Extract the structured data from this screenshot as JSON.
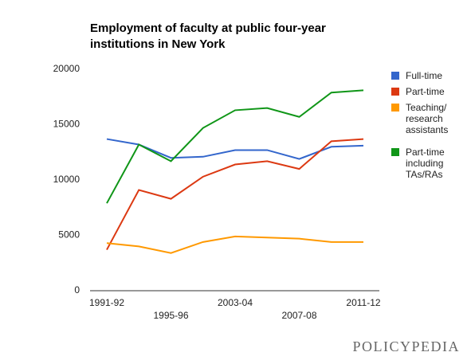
{
  "chart_data": {
    "type": "line",
    "title": "Employment of faculty at public four-year institutions in New York",
    "categories": [
      "1991-92",
      null,
      "1995-96",
      null,
      "2003-04",
      null,
      "2007-08",
      null,
      "2011-12"
    ],
    "series": [
      {
        "name": "Full-time",
        "color": "#3366cc",
        "values": [
          13700,
          13200,
          12000,
          12100,
          12700,
          12700,
          11900,
          13000,
          13100
        ]
      },
      {
        "name": "Part-time",
        "color": "#dc3912",
        "values": [
          3700,
          9100,
          8300,
          10300,
          11400,
          11700,
          11000,
          13500,
          13700
        ]
      },
      {
        "name": "Teaching/ research assistants",
        "color": "#ff9900",
        "values": [
          4300,
          4000,
          3400,
          4400,
          4900,
          4800,
          4700,
          4400,
          4400
        ]
      },
      {
        "name": "Part-time including TAs/RAs",
        "color": "#109618",
        "values": [
          7900,
          13200,
          11700,
          14700,
          16300,
          16500,
          15700,
          17900,
          18100
        ]
      }
    ],
    "ylim": [
      0,
      20000
    ],
    "yticks": [
      0,
      5000,
      10000,
      15000,
      20000
    ],
    "grid": false,
    "legend": "right"
  },
  "footer": "POLICYPEDIA"
}
